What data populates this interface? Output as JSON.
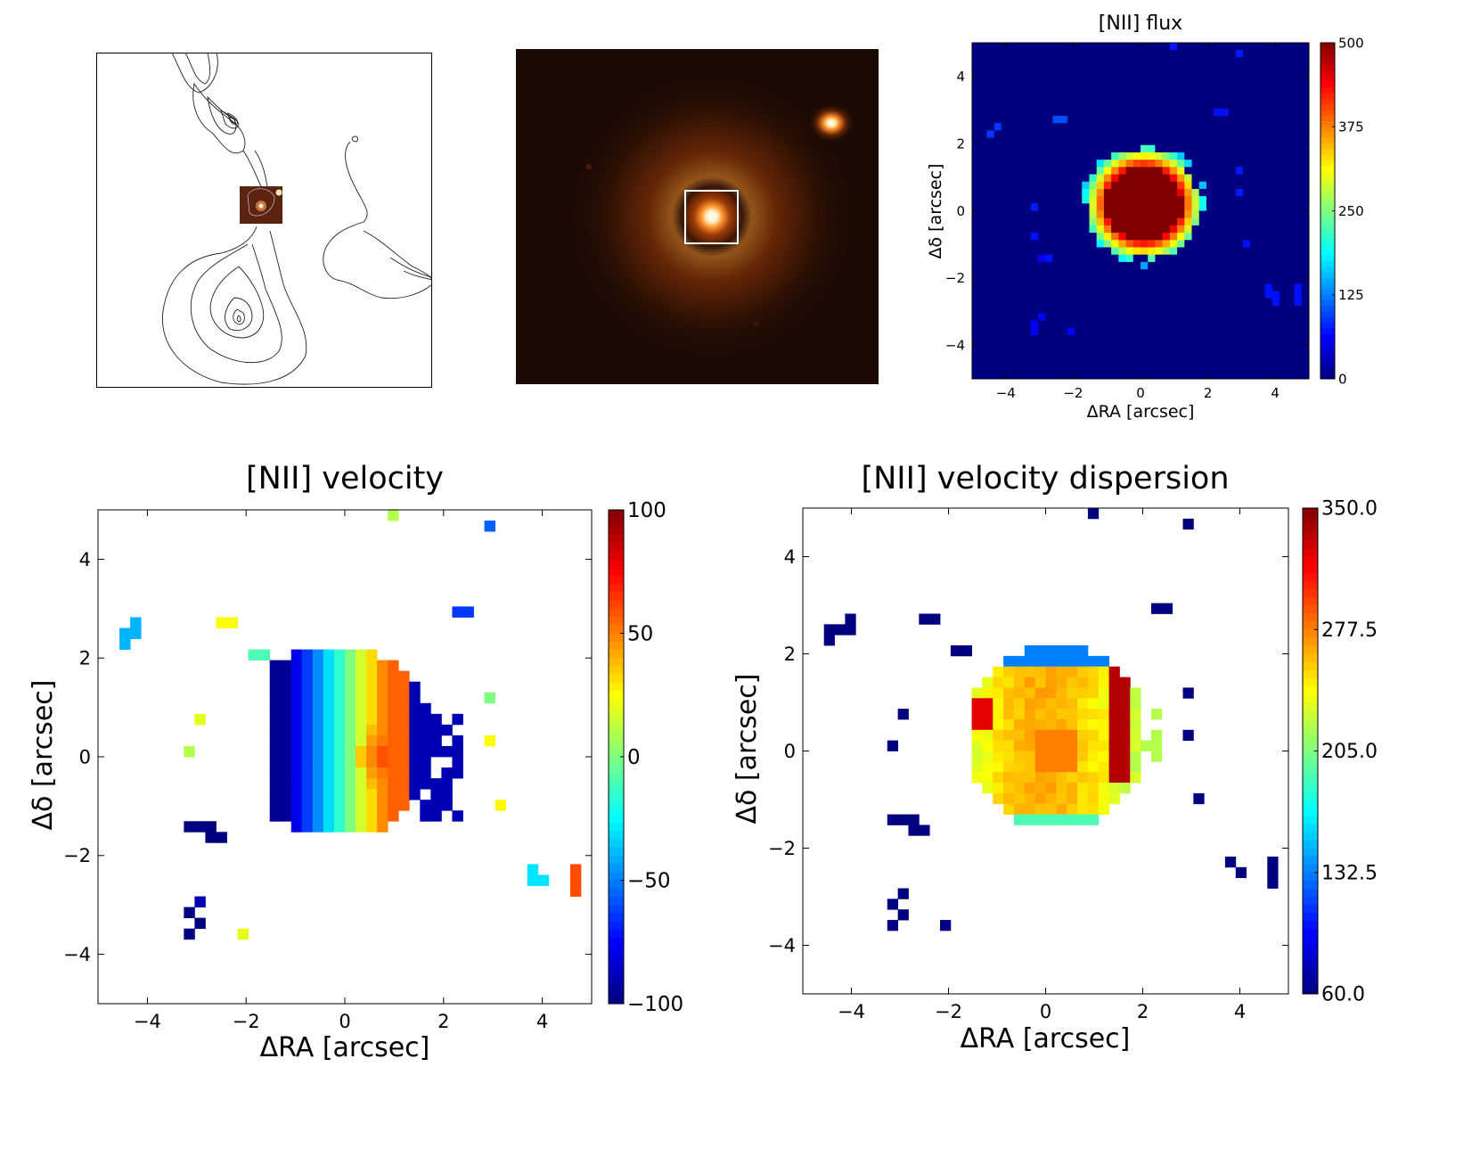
{
  "chart_data": [
    {
      "type": "image",
      "panel": "radio-contour-map",
      "description_visible": "contour map with inset optical image"
    },
    {
      "type": "image",
      "panel": "optical-image",
      "box": "white square around central galaxy"
    },
    {
      "type": "heatmap",
      "title": "[NII] flux",
      "xlabel": "ΔRA [arcsec]",
      "ylabel": "Δδ [arcsec]",
      "xlim": [
        -5,
        5
      ],
      "ylim": [
        -5,
        5
      ],
      "xticks": [
        "−4",
        "−2",
        "0",
        "2",
        "4"
      ],
      "yticks": [
        "4",
        "2",
        "0",
        "−2",
        "−4"
      ],
      "colorbar": {
        "min": 0,
        "max": 500,
        "ticks": [
          "500",
          "375",
          "250",
          "125",
          "0"
        ]
      },
      "colormap": "jet",
      "background_color": "#00007f",
      "grid": false
    },
    {
      "type": "heatmap",
      "title": "[NII] velocity",
      "xlabel": "ΔRA [arcsec]",
      "ylabel": "Δδ [arcsec]",
      "xlim": [
        -5,
        5
      ],
      "ylim": [
        -5,
        5
      ],
      "xticks": [
        "−4",
        "−2",
        "0",
        "2",
        "4"
      ],
      "yticks": [
        "4",
        "2",
        "0",
        "−2",
        "−4"
      ],
      "colorbar": {
        "min": -100,
        "max": 100,
        "ticks": [
          "100",
          "50",
          "0",
          "−50",
          "−100"
        ]
      },
      "colormap": "jet",
      "grid": false
    },
    {
      "type": "heatmap",
      "title": "[NII] velocity dispersion",
      "xlabel": "ΔRA [arcsec]",
      "ylabel": "Δδ [arcsec]",
      "xlim": [
        -5,
        5
      ],
      "ylim": [
        -5,
        5
      ],
      "xticks": [
        "−4",
        "−2",
        "0",
        "2",
        "4"
      ],
      "yticks": [
        "4",
        "2",
        "0",
        "−2",
        "−4"
      ],
      "colorbar": {
        "min": 60,
        "max": 350,
        "ticks": [
          "350.0",
          "277.5",
          "205.0",
          "132.5",
          "60.0"
        ]
      },
      "colormap": "jet",
      "grid": false
    }
  ]
}
